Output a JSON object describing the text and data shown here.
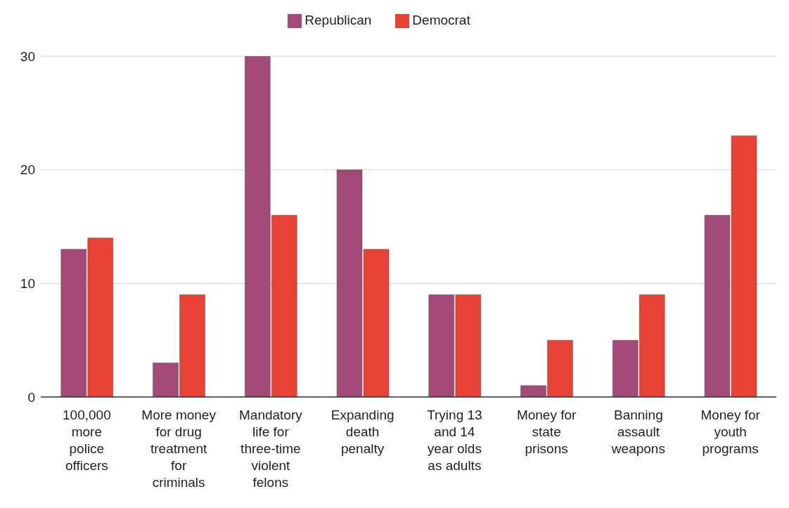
{
  "chart_data": {
    "type": "bar",
    "categories": [
      "100,000 more police officers",
      "More money for drug treatment for criminals",
      "Mandatory life for three-time violent felons",
      "Expanding death penalty",
      "Trying 13 and 14 year olds as adults",
      "Money for state prisons",
      "Banning assault weapons",
      "Money for youth programs"
    ],
    "series": [
      {
        "name": "Republican",
        "color": "#a34a78",
        "values": [
          13,
          3,
          30,
          20,
          9,
          1,
          5,
          16
        ]
      },
      {
        "name": "Democrat",
        "color": "#e84135",
        "values": [
          14,
          9,
          16,
          13,
          9,
          5,
          9,
          23
        ]
      }
    ],
    "ylim": [
      0,
      30
    ],
    "yticks": [
      0,
      10,
      20,
      30
    ],
    "grid": "y",
    "legend": "top"
  }
}
